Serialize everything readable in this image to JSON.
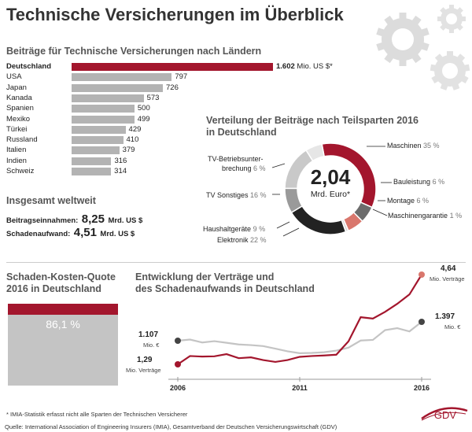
{
  "title": "Technische Versicherungen im Überblick",
  "colors": {
    "accent": "#a3162d",
    "bar": "#b3b3b3",
    "grey_line": "#c4c4c4",
    "dark": "#222222",
    "light_grey": "#d9d9d9",
    "salmon": "#d9776d",
    "mid_grey": "#9a9a9a",
    "dark_grey": "#6c6c6c"
  },
  "bar_section": {
    "title": "Beiträge für Technische Versicherungen nach Ländern",
    "highlight_unit": "Mio. US $*",
    "highlight_value_label": "1.602"
  },
  "totals": {
    "title": "Insgesamt weltweit",
    "premium_label": "Beitragseinnahmen:",
    "premium_value": "8,25",
    "premium_unit": "Mrd. US $",
    "claims_label": "Schadenaufwand:",
    "claims_value": "4,51",
    "claims_unit": "Mrd. US $"
  },
  "donut_section": {
    "title_line1": "Verteilung der Beiträge nach Teilsparten 2016",
    "title_line2": "in Deutschland",
    "center_value": "2,04",
    "center_unit": "Mrd. Euro*",
    "labels": {
      "maschinen": "Maschinen",
      "bauleistung": "Bauleistung",
      "montage": "Montage",
      "maschinengarantie": "Maschinengarantie",
      "elektronik": "Elektronik",
      "haushalt": "Haushaltgeräte",
      "tv_sonstiges": "TV Sonstiges",
      "tv_bu_line1": "TV-Betriebsunter-",
      "tv_bu_line2": "brechung"
    },
    "pcts": {
      "maschinen": "35 %",
      "bauleistung": "6 %",
      "montage": "6 %",
      "maschinengarantie": "1 %",
      "elektronik": "22 %",
      "haushalt": "9 %",
      "tv_sonstiges": "16 %",
      "tv_bu": "6 %"
    }
  },
  "quote_section": {
    "title_line1": "Schaden-Kosten-Quote",
    "title_line2": "2016 in Deutschland",
    "value_label": "86,1 %"
  },
  "line_section": {
    "title_line1": "Entwicklung der Verträge und",
    "title_line2": "des Schadenaufwands in Deutschland",
    "start_claims_value": "1.107",
    "start_claims_unit": "Mio. €",
    "start_contracts_value": "1,29",
    "start_contracts_unit": "Mio. Verträge",
    "end_contracts_value": "4,64",
    "end_contracts_unit": "Mio. Verträge",
    "end_claims_value": "1.397",
    "end_claims_unit": "Mio. €"
  },
  "footer": {
    "note": "* IMIA-Statistik erfasst nicht alle Sparten der Technischen Versicherer",
    "source": "Quelle: International Association of Engineering Insurers (IMIA), Gesamtverband der Deutschen Versicherungswirtschaft (GDV)",
    "logo_text": "GDV"
  },
  "chart_data": [
    {
      "type": "bar",
      "title": "Beiträge für Technische Versicherungen nach Ländern",
      "categories": [
        "Deutschland",
        "USA",
        "Japan",
        "Kanada",
        "Spanien",
        "Mexiko",
        "Türkei",
        "Russland",
        "Italien",
        "Indien",
        "Schweiz"
      ],
      "values": [
        1602,
        797,
        726,
        573,
        500,
        499,
        429,
        410,
        379,
        316,
        314
      ],
      "value_labels": [
        "1.602",
        "797",
        "726",
        "573",
        "500",
        "499",
        "429",
        "410",
        "379",
        "316",
        "314"
      ],
      "highlight": "Deutschland"
    },
    {
      "type": "pie",
      "title": "Verteilung der Beiträge nach Teilsparten 2016 in Deutschland",
      "categories": [
        "Maschinen",
        "Bauleistung",
        "Montage",
        "Maschinengarantie",
        "Elektronik",
        "Haushaltgeräte",
        "TV Sonstiges",
        "TV-Betriebsunterbrechung"
      ],
      "values": [
        35,
        6,
        6,
        1,
        22,
        9,
        16,
        6
      ],
      "colors": [
        "#a3162d",
        "#6c6c6c",
        "#d9776d",
        "#d9d9d9",
        "#222222",
        "#9a9a9a",
        "#c9c9c9",
        "#e6e6e6"
      ]
    },
    {
      "type": "bar",
      "title": "Schaden-Kosten-Quote 2016 in Deutschland",
      "values": [
        86.1
      ],
      "ylim": [
        0,
        100
      ]
    },
    {
      "type": "line",
      "title": "Entwicklung der Verträge und des Schadenaufwands in Deutschland",
      "tick_labels": [
        "2006",
        "2011",
        "2016"
      ],
      "x": [
        2006,
        2006.5,
        2007,
        2007.5,
        2008,
        2008.5,
        2009,
        2009.5,
        2010,
        2010.5,
        2011,
        2011.5,
        2012,
        2012.5,
        2013,
        2013.5,
        2014,
        2014.5,
        2015,
        2015.5,
        2016
      ],
      "series": [
        {
          "values": [
            1.29,
            1.6,
            1.58,
            1.59,
            1.67,
            1.52,
            1.55,
            1.45,
            1.38,
            1.45,
            1.57,
            1.6,
            1.62,
            1.65,
            2.15,
            3.05,
            3.0,
            3.25,
            3.55,
            3.9,
            4.64
          ]
        },
        {
          "values": [
            1107,
            1125,
            1080,
            1100,
            1075,
            1050,
            1040,
            1025,
            985,
            945,
            915,
            920,
            930,
            955,
            1000,
            1110,
            1120,
            1270,
            1300,
            1250,
            1397
          ]
        }
      ]
    }
  ]
}
